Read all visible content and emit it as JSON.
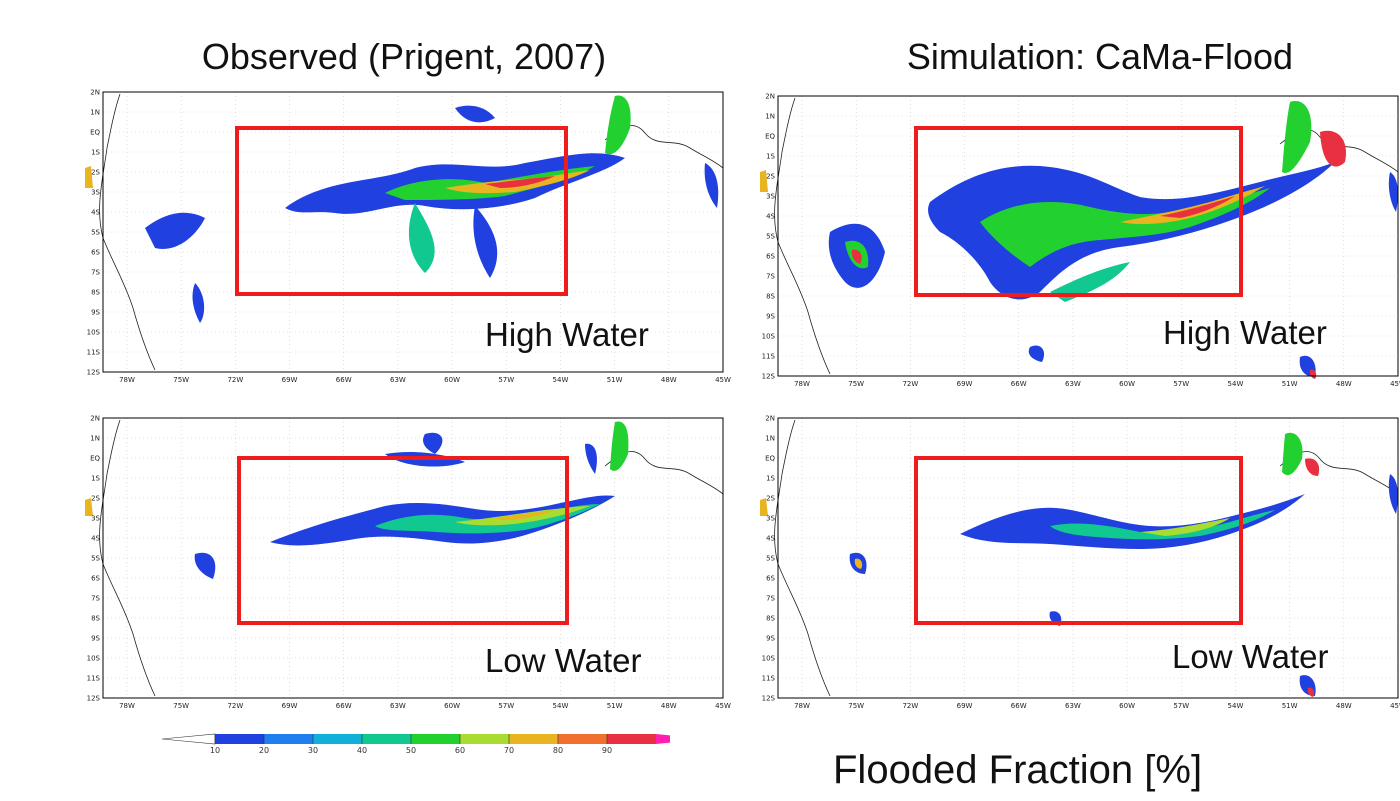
{
  "titles": {
    "observed": "Observed (Prigent, 2007)",
    "simulation": "Simulation: CaMa-Flood"
  },
  "captions": {
    "high": "High Water",
    "low": "Low Water"
  },
  "axes": {
    "lat_labels": [
      "2N",
      "1N",
      "EQ",
      "1S",
      "2S",
      "3S",
      "4S",
      "5S",
      "6S",
      "7S",
      "8S",
      "9S",
      "10S",
      "11S",
      "12S"
    ],
    "lon_labels": [
      "78W",
      "75W",
      "72W",
      "69W",
      "66W",
      "63W",
      "60W",
      "57W",
      "54W",
      "51W",
      "48W",
      "45W"
    ]
  },
  "legend": {
    "title": "Flooded Fraction [%]",
    "ticks": [
      "10",
      "20",
      "30",
      "40",
      "50",
      "60",
      "70",
      "80",
      "90"
    ],
    "colors": [
      "#2040e0",
      "#1f7ff0",
      "#10b0d8",
      "#10c890",
      "#22d030",
      "#a8dc30",
      "#e8b420",
      "#f07030",
      "#e83040",
      "#ff1fb0"
    ]
  },
  "colors": {
    "region_box": "#ee1c1c",
    "frame": "#000000"
  }
}
